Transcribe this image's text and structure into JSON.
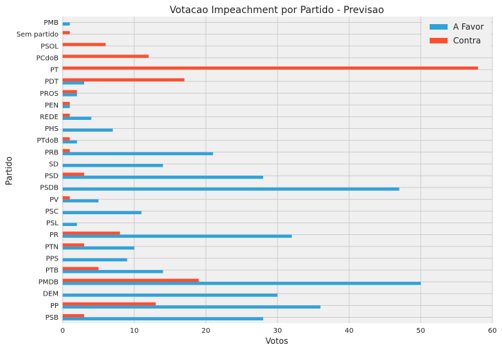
{
  "chart_data": {
    "type": "bar",
    "orientation": "horizontal",
    "title": "Votacao Impeachment por Partido - Previsao",
    "xlabel": "Votos",
    "ylabel": "Partido",
    "xlim": [
      0,
      60
    ],
    "xticks": [
      0,
      10,
      20,
      30,
      40,
      50,
      60
    ],
    "grid": true,
    "legend_position": "top-right",
    "categories": [
      "PMB",
      "Sem partido",
      "PSOL",
      "PCdoB",
      "PT",
      "PDT",
      "PROS",
      "PEN",
      "REDE",
      "PHS",
      "PTdoB",
      "PRB",
      "SD",
      "PSD",
      "PSDB",
      "PV",
      "PSC",
      "PSL",
      "PR",
      "PTN",
      "PPS",
      "PTB",
      "PMDB",
      "DEM",
      "PP",
      "PSB"
    ],
    "series": [
      {
        "name": "A Favor",
        "color": "#30a2da",
        "values": [
          1,
          0,
          0,
          0,
          0,
          3,
          2,
          1,
          4,
          7,
          2,
          21,
          14,
          28,
          47,
          5,
          11,
          2,
          32,
          10,
          9,
          14,
          50,
          30,
          36,
          28
        ]
      },
      {
        "name": "Contra",
        "color": "#fc4f30",
        "values": [
          0,
          1,
          6,
          12,
          58,
          17,
          2,
          1,
          1,
          0,
          1,
          1,
          0,
          3,
          0,
          1,
          0,
          0,
          8,
          3,
          0,
          5,
          19,
          0,
          13,
          3
        ]
      }
    ]
  },
  "colors": {
    "plot_background": "#f0f0f0",
    "grid": "#cbcbcb"
  }
}
